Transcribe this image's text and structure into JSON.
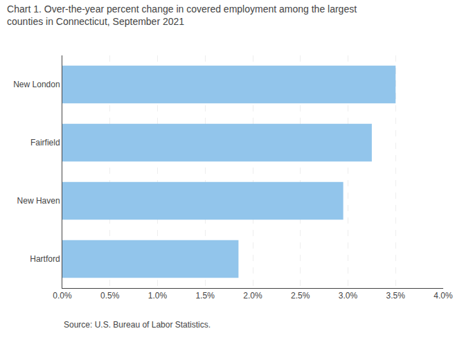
{
  "chart_data": {
    "type": "bar",
    "title": "Chart 1. Over-the-year percent change in covered employment among the largest\ncounties in Connecticut, September 2021",
    "source": "Source: U.S. Bureau of Labor Statistics.",
    "orientation": "horizontal",
    "categories": [
      "Hartford",
      "New Haven",
      "Fairfield",
      "New London"
    ],
    "values": [
      0.0185,
      0.0295,
      0.0325,
      0.035
    ],
    "color": "#92c5eb",
    "xlim": [
      0.0,
      0.04
    ],
    "xticks": [
      {
        "value": 0.0,
        "label": "0.0%"
      },
      {
        "value": 0.005,
        "label": "0.5%"
      },
      {
        "value": 0.01,
        "label": "1.0%"
      },
      {
        "value": 0.015,
        "label": "1.5%"
      },
      {
        "value": 0.02,
        "label": "2.0%"
      },
      {
        "value": 0.025,
        "label": "2.5%"
      },
      {
        "value": 0.03,
        "label": "3.0%"
      },
      {
        "value": 0.035,
        "label": "3.5%"
      },
      {
        "value": 0.04,
        "label": "4.0%"
      }
    ],
    "grid": true
  }
}
